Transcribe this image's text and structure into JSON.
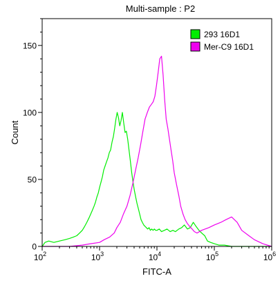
{
  "chart_data": {
    "type": "line",
    "title": "Multi-sample : P2",
    "xlabel": "FITC-A",
    "ylabel": "Count",
    "x_scale": "log",
    "xlim": [
      100,
      1000000
    ],
    "ylim": [
      0,
      170
    ],
    "grid": false,
    "legend_position": "top-right",
    "x_ticks": [
      {
        "base": "10",
        "exp": "2",
        "value": 100
      },
      {
        "base": "10",
        "exp": "3",
        "value": 1000
      },
      {
        "base": "10",
        "exp": "4",
        "value": 10000
      },
      {
        "base": "10",
        "exp": "5",
        "value": 100000
      },
      {
        "base": "10",
        "exp": "6",
        "value": 1000000
      }
    ],
    "y_ticks": [
      0,
      50,
      100,
      150
    ],
    "series": [
      {
        "name": "293 16D1",
        "color": "#00ee00",
        "x": [
          100,
          112,
          130,
          160,
          200,
          250,
          300,
          350,
          400,
          450,
          500,
          550,
          600,
          650,
          700,
          750,
          800,
          850,
          900,
          950,
          1000,
          1060,
          1120,
          1180,
          1250,
          1320,
          1400,
          1480,
          1560,
          1650,
          1740,
          1830,
          1930,
          2030,
          2140,
          2250,
          2370,
          2500,
          2640,
          2780,
          2930,
          3090,
          3260,
          3440,
          3630,
          3830,
          4040,
          4260,
          4500,
          4750,
          5010,
          5280,
          5570,
          5880,
          6200,
          6540,
          6900,
          7280,
          7680,
          8100,
          8550,
          9020,
          9520,
          10000,
          11000,
          12000,
          13500,
          15000,
          17000,
          19000,
          21000,
          24000,
          27000,
          30000,
          34000,
          38000,
          43000,
          48000,
          54000,
          60000,
          68000,
          76000,
          86000,
          100000,
          120000,
          150000,
          200000,
          300000,
          1000000
        ],
        "values": [
          0,
          3,
          4,
          3,
          4,
          5,
          6,
          7,
          8,
          10,
          12,
          15,
          18,
          21,
          24,
          27,
          30,
          33,
          37,
          40,
          44,
          48,
          52,
          57,
          60,
          63,
          66,
          70,
          72,
          78,
          82,
          88,
          95,
          100,
          96,
          90,
          94,
          100,
          92,
          85,
          86,
          80,
          72,
          64,
          55,
          48,
          42,
          37,
          32,
          28,
          24,
          20,
          18,
          16,
          15,
          14,
          13,
          14,
          12,
          13,
          12,
          13,
          12,
          12,
          13,
          11,
          12,
          13,
          11,
          12,
          11,
          13,
          14,
          16,
          13,
          14,
          18,
          15,
          12,
          10,
          8,
          4,
          3,
          2,
          1,
          1,
          0,
          0,
          0
        ]
      },
      {
        "name": "Mer-C9 16D1",
        "color": "#ee00ee",
        "x": [
          100,
          300,
          500,
          700,
          1000,
          1200,
          1500,
          1800,
          2000,
          2300,
          2600,
          3000,
          3400,
          3800,
          4200,
          4700,
          5200,
          5700,
          6200,
          6800,
          7400,
          8000,
          8600,
          9200,
          9800,
          10500,
          11200,
          12000,
          12800,
          13600,
          14500,
          15500,
          16500,
          17600,
          18800,
          20000,
          22000,
          24000,
          26000,
          28500,
          31000,
          34000,
          37000,
          41000,
          45000,
          50000,
          60000,
          80000,
          100000,
          130000,
          160000,
          200000,
          250000,
          300000,
          400000,
          500000,
          700000,
          1000000
        ],
        "values": [
          0,
          0,
          1,
          2,
          3,
          5,
          7,
          10,
          14,
          18,
          24,
          30,
          38,
          47,
          56,
          66,
          76,
          86,
          95,
          100,
          104,
          106,
          108,
          112,
          120,
          130,
          140,
          142,
          128,
          110,
          95,
          88,
          80,
          72,
          64,
          55,
          46,
          38,
          30,
          24,
          20,
          17,
          15,
          13,
          11,
          10,
          12,
          14,
          16,
          18,
          20,
          22,
          18,
          12,
          8,
          5,
          2,
          0
        ]
      }
    ]
  }
}
